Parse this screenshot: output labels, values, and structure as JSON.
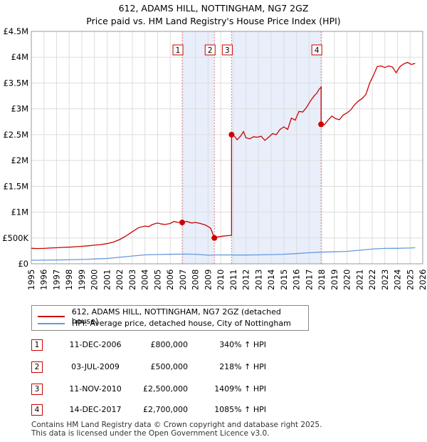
{
  "header": {
    "title": "612, ADAMS HILL, NOTTINGHAM, NG7 2GZ",
    "subtitle": "Price paid vs. HM Land Registry's House Price Index (HPI)"
  },
  "colors": {
    "property": "#cc0000",
    "hpi": "#6699dd",
    "shade": "#e8eefa",
    "grid": "#dddddd",
    "vline": "#e08080"
  },
  "chart_data": {
    "type": "line",
    "x_range": [
      1995,
      2026
    ],
    "y_range": [
      0,
      4500000
    ],
    "y_ticks": [
      {
        "v": 0,
        "label": "£0"
      },
      {
        "v": 500000,
        "label": "£500K"
      },
      {
        "v": 1000000,
        "label": "£1M"
      },
      {
        "v": 1500000,
        "label": "£1.5M"
      },
      {
        "v": 2000000,
        "label": "£2M"
      },
      {
        "v": 2500000,
        "label": "£2.5M"
      },
      {
        "v": 3000000,
        "label": "£3M"
      },
      {
        "v": 3500000,
        "label": "£3.5M"
      },
      {
        "v": 4000000,
        "label": "£4M"
      },
      {
        "v": 4500000,
        "label": "£4.5M"
      }
    ],
    "x_ticks": [
      "1995",
      "1996",
      "1997",
      "1998",
      "1999",
      "2000",
      "2001",
      "2002",
      "2003",
      "2004",
      "2005",
      "2006",
      "2007",
      "2008",
      "2009",
      "2010",
      "2011",
      "2012",
      "2013",
      "2014",
      "2015",
      "2016",
      "2017",
      "2018",
      "2019",
      "2020",
      "2021",
      "2022",
      "2023",
      "2024",
      "2025",
      "2026"
    ],
    "shaded_ranges": [
      [
        2006.95,
        2009.5
      ],
      [
        2010.86,
        2017.95
      ]
    ],
    "series": [
      {
        "name": "612, ADAMS HILL, NOTTINGHAM, NG7 2GZ (detached house)",
        "points": [
          [
            1995.0,
            300000
          ],
          [
            1995.5,
            295000
          ],
          [
            1996.0,
            298000
          ],
          [
            1996.5,
            305000
          ],
          [
            1997.0,
            310000
          ],
          [
            1997.5,
            318000
          ],
          [
            1998.0,
            322000
          ],
          [
            1998.5,
            330000
          ],
          [
            1999.0,
            338000
          ],
          [
            1999.5,
            348000
          ],
          [
            2000.0,
            360000
          ],
          [
            2000.5,
            372000
          ],
          [
            2001.0,
            390000
          ],
          [
            2001.5,
            420000
          ],
          [
            2002.0,
            470000
          ],
          [
            2002.5,
            540000
          ],
          [
            2003.0,
            620000
          ],
          [
            2003.5,
            700000
          ],
          [
            2004.0,
            730000
          ],
          [
            2004.3,
            720000
          ],
          [
            2004.6,
            760000
          ],
          [
            2005.0,
            790000
          ],
          [
            2005.3,
            770000
          ],
          [
            2005.6,
            760000
          ],
          [
            2006.0,
            780000
          ],
          [
            2006.3,
            820000
          ],
          [
            2006.6,
            800000
          ],
          [
            2006.95,
            800000
          ],
          [
            2007.3,
            820000
          ],
          [
            2007.7,
            790000
          ],
          [
            2008.0,
            800000
          ],
          [
            2008.4,
            780000
          ],
          [
            2008.8,
            750000
          ],
          [
            2009.2,
            690000
          ],
          [
            2009.5,
            500000
          ],
          [
            2009.8,
            520000
          ],
          [
            2010.2,
            535000
          ],
          [
            2010.6,
            545000
          ],
          [
            2010.86,
            550000
          ],
          [
            2010.86,
            2500000
          ],
          [
            2011.1,
            2470000
          ],
          [
            2011.3,
            2400000
          ],
          [
            2011.6,
            2480000
          ],
          [
            2011.8,
            2560000
          ],
          [
            2012.0,
            2440000
          ],
          [
            2012.3,
            2420000
          ],
          [
            2012.6,
            2460000
          ],
          [
            2012.9,
            2450000
          ],
          [
            2013.2,
            2470000
          ],
          [
            2013.5,
            2390000
          ],
          [
            2013.8,
            2450000
          ],
          [
            2014.1,
            2520000
          ],
          [
            2014.4,
            2500000
          ],
          [
            2014.7,
            2600000
          ],
          [
            2015.0,
            2650000
          ],
          [
            2015.3,
            2600000
          ],
          [
            2015.6,
            2820000
          ],
          [
            2015.9,
            2780000
          ],
          [
            2016.2,
            2950000
          ],
          [
            2016.5,
            2940000
          ],
          [
            2016.8,
            3030000
          ],
          [
            2017.1,
            3150000
          ],
          [
            2017.4,
            3250000
          ],
          [
            2017.6,
            3300000
          ],
          [
            2017.8,
            3380000
          ],
          [
            2017.95,
            3420000
          ],
          [
            2017.95,
            2700000
          ],
          [
            2018.2,
            2690000
          ],
          [
            2018.5,
            2780000
          ],
          [
            2018.8,
            2860000
          ],
          [
            2019.1,
            2810000
          ],
          [
            2019.4,
            2790000
          ],
          [
            2019.7,
            2880000
          ],
          [
            2020.0,
            2920000
          ],
          [
            2020.3,
            2980000
          ],
          [
            2020.6,
            3080000
          ],
          [
            2020.9,
            3150000
          ],
          [
            2021.2,
            3200000
          ],
          [
            2021.5,
            3280000
          ],
          [
            2021.8,
            3500000
          ],
          [
            2022.1,
            3650000
          ],
          [
            2022.4,
            3820000
          ],
          [
            2022.7,
            3830000
          ],
          [
            2023.0,
            3800000
          ],
          [
            2023.3,
            3830000
          ],
          [
            2023.6,
            3810000
          ],
          [
            2023.9,
            3700000
          ],
          [
            2024.2,
            3820000
          ],
          [
            2024.5,
            3870000
          ],
          [
            2024.8,
            3900000
          ],
          [
            2025.1,
            3860000
          ],
          [
            2025.4,
            3880000
          ]
        ]
      },
      {
        "name": "HPI: Average price, detached house, City of Nottingham",
        "points": [
          [
            1995.0,
            68000
          ],
          [
            1996.0,
            70000
          ],
          [
            1997.0,
            73000
          ],
          [
            1998.0,
            77000
          ],
          [
            1999.0,
            83000
          ],
          [
            2000.0,
            92000
          ],
          [
            2001.0,
            103000
          ],
          [
            2002.0,
            125000
          ],
          [
            2003.0,
            150000
          ],
          [
            2004.0,
            172000
          ],
          [
            2005.0,
            180000
          ],
          [
            2006.0,
            183000
          ],
          [
            2007.0,
            188000
          ],
          [
            2008.0,
            185000
          ],
          [
            2009.0,
            166000
          ],
          [
            2010.0,
            172000
          ],
          [
            2011.0,
            170000
          ],
          [
            2012.0,
            170000
          ],
          [
            2013.0,
            172000
          ],
          [
            2014.0,
            178000
          ],
          [
            2015.0,
            185000
          ],
          [
            2016.0,
            198000
          ],
          [
            2017.0,
            214000
          ],
          [
            2018.0,
            225000
          ],
          [
            2019.0,
            232000
          ],
          [
            2020.0,
            240000
          ],
          [
            2021.0,
            262000
          ],
          [
            2022.0,
            285000
          ],
          [
            2023.0,
            298000
          ],
          [
            2024.0,
            300000
          ],
          [
            2025.0,
            305000
          ],
          [
            2025.4,
            310000
          ]
        ]
      }
    ],
    "sales": [
      {
        "n": "1",
        "x": 2006.95,
        "y": 800000
      },
      {
        "n": "2",
        "x": 2009.5,
        "y": 500000
      },
      {
        "n": "3",
        "x": 2010.86,
        "y": 2500000
      },
      {
        "n": "4",
        "x": 2017.95,
        "y": 2700000
      }
    ]
  },
  "legend": {
    "property_label": "612, ADAMS HILL, NOTTINGHAM, NG7 2GZ (detached house)",
    "hpi_label": "HPI: Average price, detached house, City of Nottingham"
  },
  "transactions": [
    {
      "num": "1",
      "date": "11-DEC-2006",
      "price": "£800,000",
      "hpi": "340% ↑ HPI"
    },
    {
      "num": "2",
      "date": "03-JUL-2009",
      "price": "£500,000",
      "hpi": "218% ↑ HPI"
    },
    {
      "num": "3",
      "date": "11-NOV-2010",
      "price": "£2,500,000",
      "hpi": "1409% ↑ HPI"
    },
    {
      "num": "4",
      "date": "14-DEC-2017",
      "price": "£2,700,000",
      "hpi": "1085% ↑ HPI"
    }
  ],
  "footer": {
    "line1": "Contains HM Land Registry data © Crown copyright and database right 2025.",
    "line2": "This data is licensed under the Open Government Licence v3.0."
  }
}
